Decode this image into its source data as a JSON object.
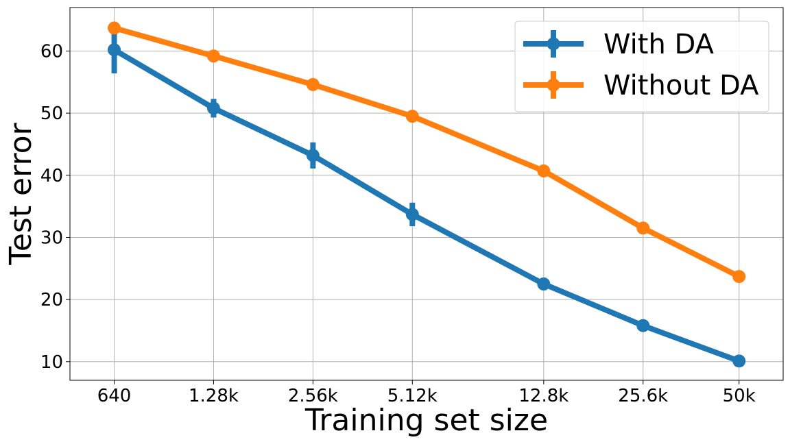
{
  "chart_data": {
    "type": "line",
    "title": "",
    "xlabel": "Training set size",
    "ylabel": "Test error",
    "categories": [
      "640",
      "1.28k",
      "2.56k",
      "5.12k",
      "12.8k",
      "25.6k",
      "50k"
    ],
    "x": [
      640,
      1280,
      2560,
      5120,
      12800,
      25600,
      50000
    ],
    "xscale": "log",
    "xlim": [
      470,
      68000
    ],
    "ylim": [
      7,
      67
    ],
    "yticks": [
      10,
      20,
      30,
      40,
      50,
      60
    ],
    "grid": true,
    "legend_position": "top-right",
    "series": [
      {
        "name": "With DA",
        "color": "#1f77b4",
        "values": [
          60.2,
          50.8,
          43.2,
          33.7,
          22.5,
          15.8,
          10.1
        ],
        "errors": [
          3.8,
          1.5,
          2.1,
          1.9,
          1.0,
          0.5,
          0.4
        ]
      },
      {
        "name": "Without DA",
        "color": "#ff7f0e",
        "values": [
          63.7,
          59.2,
          54.6,
          49.5,
          40.7,
          31.5,
          23.7
        ],
        "errors": [
          0.4,
          0.4,
          0.4,
          0.4,
          0.4,
          0.4,
          0.4
        ]
      }
    ]
  }
}
